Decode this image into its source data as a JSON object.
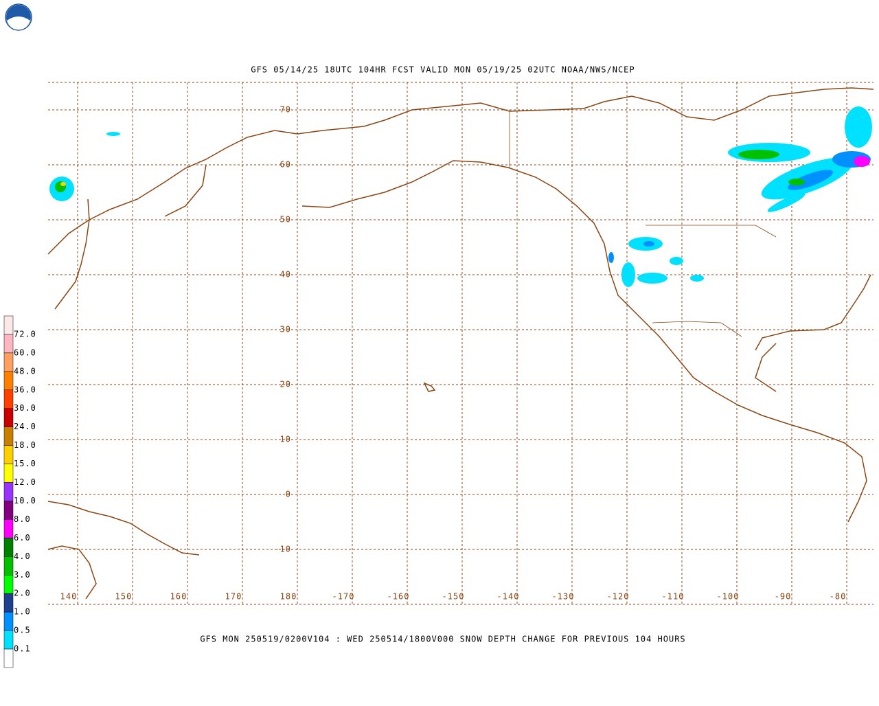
{
  "header": {
    "title": "GFS 05/14/25 18UTC 104HR FCST VALID MON 05/19/25 02UTC NOAA/NWS/NCEP"
  },
  "map": {
    "latitude_labels": [
      "70",
      "60",
      "50",
      "40",
      "30",
      "20",
      "10",
      "0",
      "-10"
    ],
    "longitude_labels": [
      "140",
      "150",
      "160",
      "170",
      "180",
      "-170",
      "-160",
      "-150",
      "-140",
      "-130",
      "-120",
      "-110",
      "-100",
      "-90",
      "-80"
    ]
  },
  "legend": {
    "labels": [
      "72.0",
      "60.0",
      "48.0",
      "36.0",
      "30.0",
      "24.0",
      "18.0",
      "15.0",
      "12.0",
      "10.0",
      "8.0",
      "6.0",
      "4.0",
      "3.0",
      "2.0",
      "1.0",
      "0.5",
      "0.1"
    ],
    "colors": [
      "#fde8e8",
      "#ffb6c1",
      "#ffa060",
      "#ff8000",
      "#ff4000",
      "#c80000",
      "#c88000",
      "#ffd000",
      "#ffff00",
      "#9933ff",
      "#800080",
      "#ff00ff",
      "#008000",
      "#00c000",
      "#00ff00",
      "#1f3f8f",
      "#0090ff",
      "#00e0ff",
      "#ffffff"
    ]
  },
  "caption": "GFS MON 250519/0200V104 : WED 250514/1800V000 SNOW DEPTH CHANGE FOR PREVIOUS 104 HOURS"
}
